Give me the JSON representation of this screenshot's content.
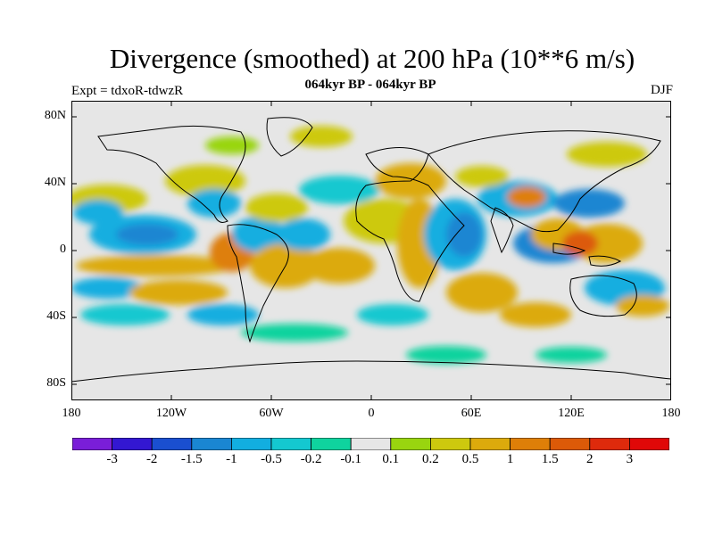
{
  "title": "Divergence (smoothed) at 200 hPa (10**6 m/s)",
  "subtitle": "064kyr BP - 064kyr BP",
  "experiment": "Expt = tdxoR-tdwzR",
  "season": "DJF",
  "lat_ticks": [
    "80N",
    "40N",
    "0",
    "40S",
    "80S"
  ],
  "lon_ticks": [
    "180",
    "120W",
    "60W",
    "0",
    "60E",
    "120E",
    "180"
  ],
  "colorbar": {
    "levels": [
      "-3",
      "-2",
      "-1.5",
      "-1",
      "-0.5",
      "-0.2",
      "-0.1",
      "0.1",
      "0.2",
      "0.5",
      "1",
      "1.5",
      "2",
      "3"
    ],
    "colors": [
      "#7a1ed8",
      "#3317d1",
      "#1a4fd0",
      "#1a86d2",
      "#12aee0",
      "#14c8d0",
      "#0fd39e",
      "#e6e6e6",
      "#99d50f",
      "#cdc90e",
      "#dcaa0c",
      "#de7f08",
      "#dc5a08",
      "#de2a0c",
      "#e00808"
    ]
  },
  "colors": {
    "land_outline": "#000000",
    "neutral": "#e6e6e6"
  }
}
